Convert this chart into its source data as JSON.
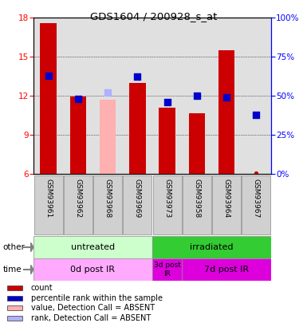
{
  "title": "GDS1604 / 200928_s_at",
  "samples": [
    "GSM93961",
    "GSM93962",
    "GSM93968",
    "GSM93969",
    "GSM93973",
    "GSM93958",
    "GSM93964",
    "GSM93967"
  ],
  "bar_values": [
    17.6,
    11.95,
    null,
    13.0,
    11.1,
    10.65,
    15.5,
    null
  ],
  "bar_absent_values": [
    null,
    null,
    11.7,
    null,
    null,
    null,
    null,
    null
  ],
  "rank_values": [
    63,
    48,
    null,
    62,
    46,
    50,
    49,
    null
  ],
  "rank_absent_values": [
    null,
    null,
    52,
    null,
    null,
    null,
    null,
    null
  ],
  "rank_absent_gsm93967": 38,
  "bar_color": "#cc0000",
  "bar_absent_color": "#ffb0b0",
  "rank_color": "#0000cc",
  "rank_absent_color": "#b0b0ff",
  "ylim_left": [
    6,
    18
  ],
  "ylim_right": [
    0,
    100
  ],
  "yticks_left": [
    6,
    9,
    12,
    15,
    18
  ],
  "yticks_right": [
    0,
    25,
    50,
    75,
    100
  ],
  "ytick_labels_right": [
    "0%",
    "25%",
    "50%",
    "75%",
    "100%"
  ],
  "group_other": [
    {
      "label": "untreated",
      "start": 0,
      "end": 4,
      "color": "#ccffcc"
    },
    {
      "label": "irradiated",
      "start": 4,
      "end": 8,
      "color": "#33cc33"
    }
  ],
  "group_time": [
    {
      "label": "0d post IR",
      "start": 0,
      "end": 4,
      "color": "#ffaaff"
    },
    {
      "label": "3d post\nIR",
      "start": 4,
      "end": 5,
      "color": "#dd00dd"
    },
    {
      "label": "7d post IR",
      "start": 5,
      "end": 8,
      "color": "#dd00dd"
    }
  ],
  "legend_items": [
    {
      "label": "count",
      "color": "#cc0000"
    },
    {
      "label": "percentile rank within the sample",
      "color": "#0000cc"
    },
    {
      "label": "value, Detection Call = ABSENT",
      "color": "#ffb0b0"
    },
    {
      "label": "rank, Detection Call = ABSENT",
      "color": "#b0b0ff"
    }
  ],
  "background_color": "#ffffff",
  "plot_bg_color": "#e0e0e0",
  "cell_bg_color": "#d0d0d0"
}
